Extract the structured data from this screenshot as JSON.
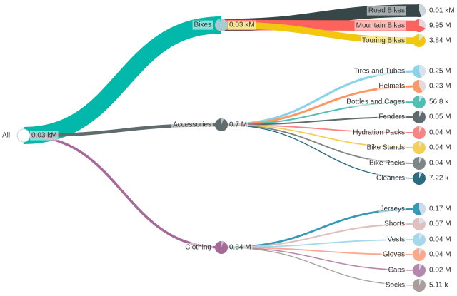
{
  "chart_data": {
    "type": "decomposition-tree",
    "root": {
      "label": "All",
      "value_label": "0.03 kM",
      "color": "#ffffff"
    },
    "groups": [
      {
        "name": "Bikes",
        "value_label": "0.03 kM",
        "value": 28.3,
        "color": "#01b8aa",
        "children": [
          {
            "name": "Road Bikes",
            "value_label": "0.01 kM",
            "value": 14.52,
            "color": "#374649"
          },
          {
            "name": "Mountain Bikes",
            "value_label": "9.95 M",
            "value": 9.95,
            "color": "#fd625e"
          },
          {
            "name": "Touring Bikes",
            "value_label": "3.84 M",
            "value": 3.84,
            "color": "#f2c80f"
          }
        ]
      },
      {
        "name": "Accessories",
        "value_label": "0.7 M",
        "value": 0.7,
        "color": "#5f6b6d",
        "children": [
          {
            "name": "Tires and Tubes",
            "value_label": "0.25 M",
            "value": 0.25,
            "color": "#8ad4eb"
          },
          {
            "name": "Helmets",
            "value_label": "0.23 M",
            "value": 0.23,
            "color": "#fe9666"
          },
          {
            "name": "Bottles and Cages",
            "value_label": "56.8 k",
            "value": 0.0568,
            "color": "#4ec1b4"
          },
          {
            "name": "Fenders",
            "value_label": "0.05 M",
            "value": 0.05,
            "color": "#5f6b6d"
          },
          {
            "name": "Hydration Packs",
            "value_label": "0.04 M",
            "value": 0.04,
            "color": "#f98584"
          },
          {
            "name": "Bike Stands",
            "value_label": "0.04 M",
            "value": 0.04,
            "color": "#f2cf55"
          },
          {
            "name": "Bike Racks",
            "value_label": "0.04 M",
            "value": 0.04,
            "color": "#7e8688"
          },
          {
            "name": "Cleaners",
            "value_label": "7.22 k",
            "value": 0.00722,
            "color": "#2a6b80"
          }
        ]
      },
      {
        "name": "Clothing",
        "value_label": "0.34 M",
        "value": 0.34,
        "color": "#a66999",
        "children": [
          {
            "name": "Jerseys",
            "value_label": "0.17 M",
            "value": 0.17,
            "color": "#3599b8"
          },
          {
            "name": "Shorts",
            "value_label": "0.07 M",
            "value": 0.07,
            "color": "#dfbfbf"
          },
          {
            "name": "Vests",
            "value_label": "0.04 M",
            "value": 0.04,
            "color": "#a5d8eb"
          },
          {
            "name": "Gloves",
            "value_label": "0.04 M",
            "value": 0.04,
            "color": "#fba98c"
          },
          {
            "name": "Caps",
            "value_label": "0.02 M",
            "value": 0.02,
            "color": "#b687ac"
          },
          {
            "name": "Socks",
            "value_label": "5.11 k",
            "value": 0.00511,
            "color": "#a99d9d"
          }
        ]
      }
    ]
  }
}
